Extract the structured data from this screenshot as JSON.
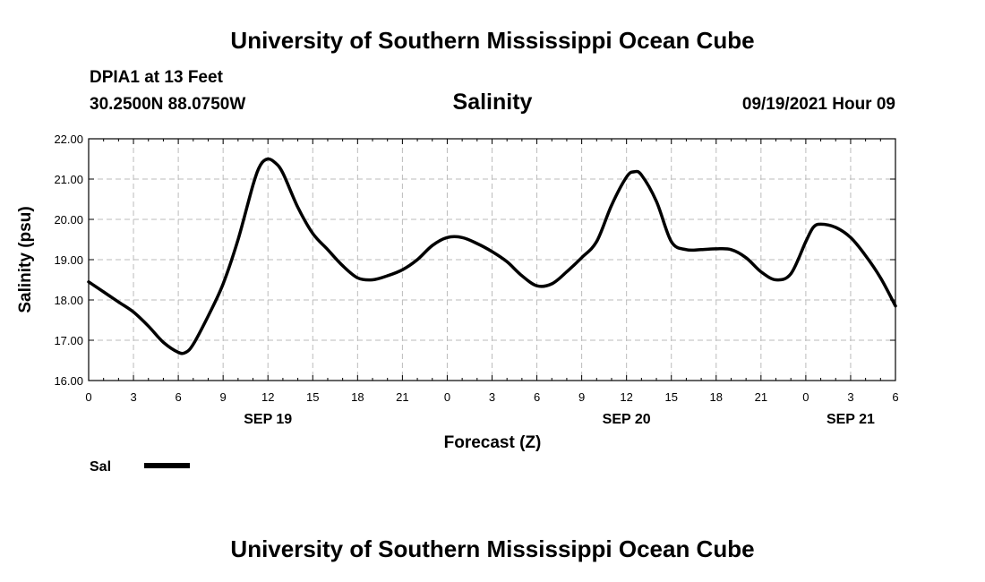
{
  "header": {
    "top_title": "University of Southern Mississippi Ocean Cube",
    "station": "DPIA1 at 13 Feet",
    "coords": "30.2500N  88.0750W",
    "chart_title": "Salinity",
    "timestamp": "09/19/2021 Hour 09",
    "bottom_title": "University of Southern Mississippi Ocean Cube"
  },
  "chart_data": {
    "type": "line",
    "title": "Salinity",
    "xlabel": "Forecast (Z)",
    "ylabel": "Salinity (psu)",
    "ylim": [
      16,
      22
    ],
    "y_ticks": [
      "16.00",
      "17.00",
      "18.00",
      "19.00",
      "20.00",
      "21.00",
      "22.00"
    ],
    "x_range_hours": [
      0,
      54
    ],
    "x_ticks": [
      "0",
      "3",
      "6",
      "9",
      "12",
      "15",
      "18",
      "21",
      "0",
      "3",
      "6",
      "9",
      "12",
      "15",
      "18",
      "21",
      "0",
      "3",
      "6"
    ],
    "date_labels": [
      {
        "label": "SEP 19",
        "at_hour": 12
      },
      {
        "label": "SEP 20",
        "at_hour": 36
      },
      {
        "label": "SEP 21",
        "at_hour": 51
      }
    ],
    "grid": true,
    "legend_position": "bottom-left",
    "series": [
      {
        "name": "Sal",
        "color": "#000000",
        "x": [
          0,
          1,
          2,
          3,
          4,
          5,
          6,
          6.5,
          7,
          8,
          9,
          10,
          11,
          11.5,
          12,
          12.5,
          13,
          14,
          15,
          16,
          17,
          18,
          19,
          20,
          21,
          22,
          23,
          24,
          25,
          26,
          27,
          28,
          29,
          30,
          31,
          32,
          33,
          34,
          35,
          36,
          36.5,
          37,
          38,
          39,
          40,
          41,
          42,
          43,
          44,
          45,
          46,
          47,
          48,
          48.5,
          49,
          50,
          51,
          52,
          53,
          54
        ],
        "values": [
          18.45,
          18.2,
          17.95,
          17.7,
          17.35,
          16.95,
          16.7,
          16.7,
          16.9,
          17.6,
          18.4,
          19.5,
          20.85,
          21.35,
          21.5,
          21.4,
          21.15,
          20.3,
          19.65,
          19.25,
          18.85,
          18.55,
          18.5,
          18.6,
          18.75,
          19.0,
          19.35,
          19.55,
          19.55,
          19.4,
          19.2,
          18.95,
          18.6,
          18.35,
          18.4,
          18.7,
          19.05,
          19.45,
          20.35,
          21.05,
          21.18,
          21.1,
          20.45,
          19.45,
          19.25,
          19.25,
          19.27,
          19.25,
          19.05,
          18.7,
          18.5,
          18.65,
          19.45,
          19.8,
          19.88,
          19.8,
          19.55,
          19.1,
          18.55,
          17.85
        ]
      }
    ]
  }
}
